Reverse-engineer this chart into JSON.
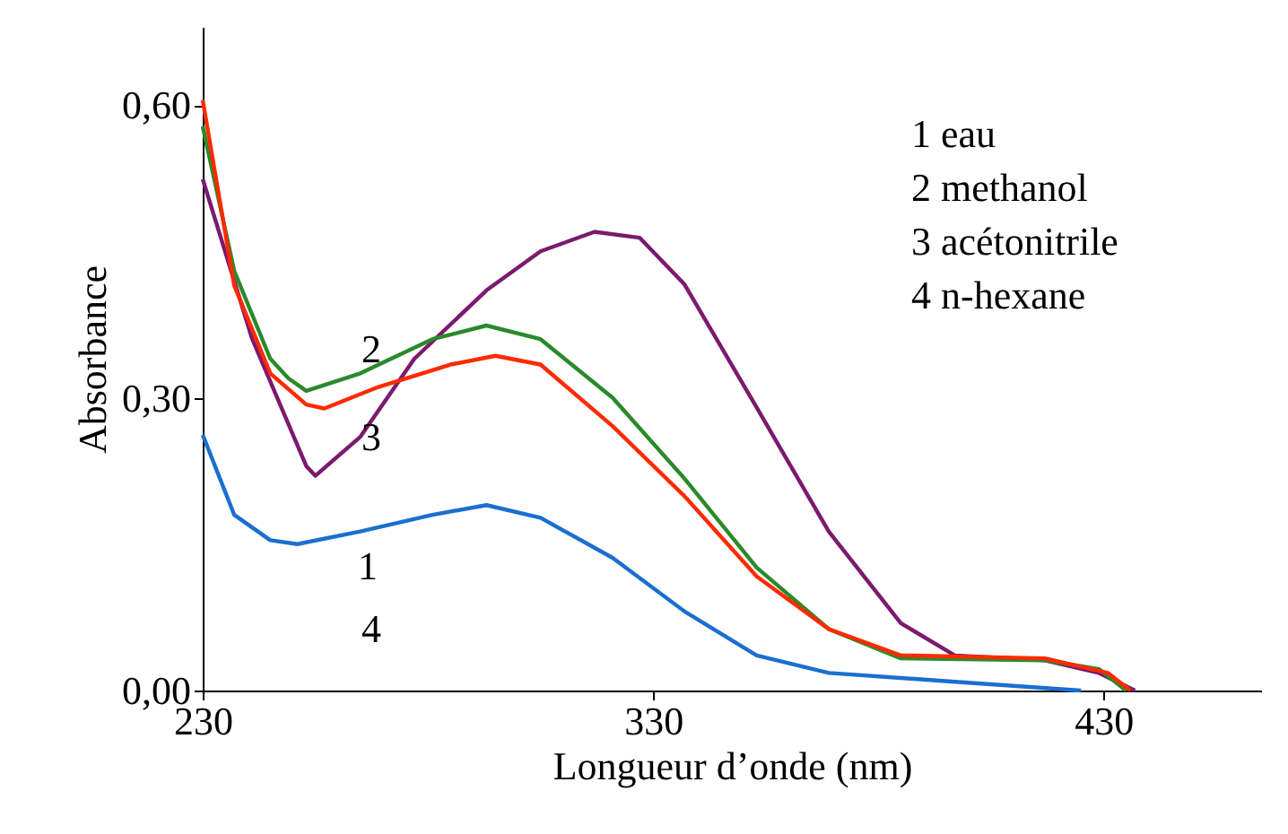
{
  "chart_data": {
    "type": "line",
    "xlabel": "Longueur d’onde (nm)",
    "ylabel": "Absorbance",
    "xlim": [
      230,
      465
    ],
    "ylim": [
      0,
      0.68
    ],
    "xticks": [
      230,
      330,
      430
    ],
    "yticks": [
      {
        "value": 0,
        "label": "0,00"
      },
      {
        "value": 0.3,
        "label": "0,30"
      },
      {
        "value": 0.6,
        "label": "0,60"
      }
    ],
    "grid": false,
    "marker": "none",
    "line_style": "solid",
    "series": [
      {
        "color": "#7b1a6e",
        "x": [
          230,
          241,
          253,
          255,
          265,
          277,
          293,
          305,
          317,
          327,
          337,
          353,
          369,
          385,
          397,
          417,
          429,
          437
        ],
        "values": [
          0.524,
          0.36,
          0.23,
          0.22,
          0.26,
          0.34,
          0.41,
          0.45,
          0.47,
          0.464,
          0.416,
          0.29,
          0.163,
          0.069,
          0.036,
          0.031,
          0.018,
          0
        ]
      },
      {
        "color": "#2a8a2a",
        "x": [
          230,
          237,
          245,
          249,
          253,
          265,
          281,
          293,
          305,
          321,
          337,
          353,
          369,
          385,
          417,
          429,
          435
        ],
        "values": [
          0.578,
          0.43,
          0.34,
          0.32,
          0.307,
          0.325,
          0.36,
          0.374,
          0.36,
          0.3,
          0.217,
          0.126,
          0.063,
          0.033,
          0.031,
          0.022,
          0
        ]
      },
      {
        "color": "#ff2a00",
        "x": [
          230,
          237,
          245,
          253,
          257,
          269,
          285,
          295,
          305,
          321,
          337,
          353,
          369,
          385,
          417,
          431,
          436
        ],
        "values": [
          0.605,
          0.415,
          0.325,
          0.293,
          0.289,
          0.311,
          0.334,
          0.343,
          0.334,
          0.271,
          0.199,
          0.117,
          0.063,
          0.036,
          0.033,
          0.018,
          0
        ]
      },
      {
        "color": "#1a6fd0",
        "x": [
          230,
          237,
          245,
          251,
          265,
          281,
          293,
          305,
          321,
          337,
          353,
          369,
          397,
          425
        ],
        "values": [
          0.262,
          0.18,
          0.154,
          0.15,
          0.163,
          0.18,
          0.19,
          0.177,
          0.136,
          0.081,
          0.036,
          0.018,
          0.009,
          0
        ]
      }
    ],
    "annotations": [
      "1 eau",
      "2 methanol",
      "3 acétonitrile",
      "4 n-hexane",
      "2",
      "3",
      "1",
      "4"
    ]
  }
}
